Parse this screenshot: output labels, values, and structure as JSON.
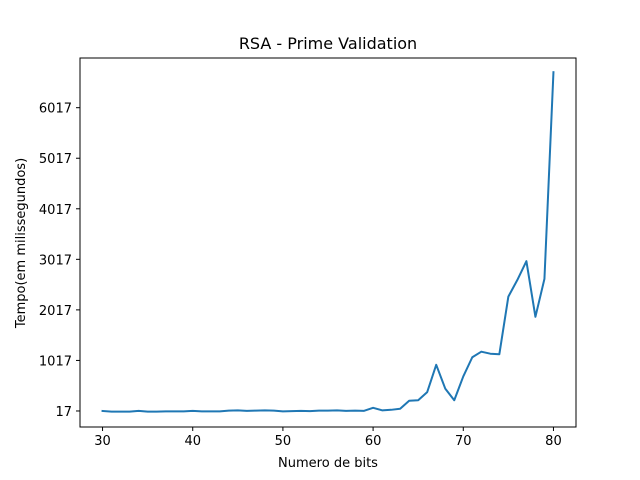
{
  "chart_data": {
    "type": "line",
    "title": "RSA - Prime Validation",
    "xlabel": "Numero de bits",
    "ylabel": "Tempo(em milissegundos)",
    "xlim": [
      27.5,
      82.5
    ],
    "ylim": [
      -300,
      7000
    ],
    "xticks": [
      30,
      40,
      50,
      60,
      70,
      80
    ],
    "yticks": [
      17,
      1017,
      2017,
      3017,
      4017,
      5017,
      6017
    ],
    "grid": false,
    "series": [
      {
        "color": "#1f77b4",
        "x": [
          30,
          31,
          32,
          33,
          34,
          35,
          36,
          37,
          38,
          39,
          40,
          41,
          42,
          43,
          44,
          45,
          46,
          47,
          48,
          49,
          50,
          51,
          52,
          53,
          54,
          55,
          56,
          57,
          58,
          59,
          60,
          61,
          62,
          63,
          64,
          65,
          66,
          67,
          68,
          69,
          70,
          71,
          72,
          73,
          74,
          75,
          76,
          77,
          78,
          79,
          80
        ],
        "values": [
          17,
          5,
          5,
          5,
          20,
          5,
          5,
          8,
          10,
          10,
          18,
          10,
          10,
          10,
          25,
          30,
          20,
          25,
          30,
          25,
          10,
          15,
          20,
          15,
          25,
          25,
          30,
          20,
          25,
          20,
          80,
          30,
          40,
          60,
          220,
          230,
          390,
          930,
          460,
          230,
          700,
          1080,
          1190,
          1150,
          1140,
          2280,
          2610,
          2980,
          1880,
          2630,
          6720
        ]
      }
    ]
  }
}
